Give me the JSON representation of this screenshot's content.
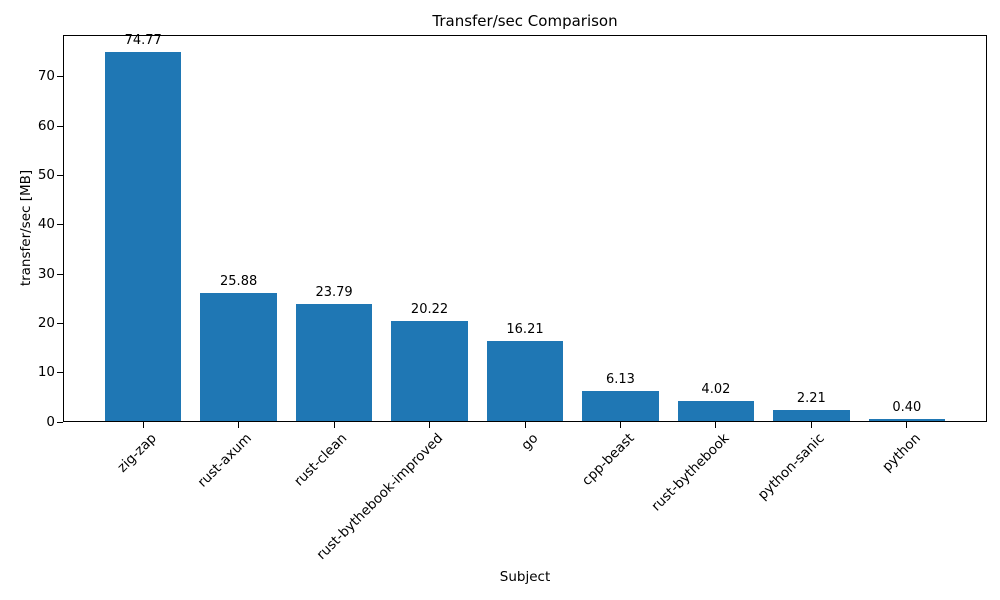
{
  "figure": {
    "background": "#ffffff",
    "text_color": "#000000",
    "spine_color": "#000000"
  },
  "chart_data": {
    "type": "bar",
    "title": "Transfer/sec Comparison",
    "xlabel": "Subject",
    "ylabel": "transfer/sec [MB]",
    "categories": [
      "zig-zap",
      "rust-axum",
      "rust-clean",
      "rust-bythebook-improved",
      "go",
      "cpp-beast",
      "rust-bythebook",
      "python-sanic",
      "python"
    ],
    "values": [
      74.77,
      25.88,
      23.79,
      20.22,
      16.21,
      6.13,
      4.02,
      2.21,
      0.4
    ],
    "bar_labels": [
      "74.77",
      "25.88",
      "23.79",
      "20.22",
      "16.21",
      "6.13",
      "4.02",
      "2.21",
      "0.40"
    ],
    "yticks": [
      0,
      10,
      20,
      30,
      40,
      50,
      60,
      70
    ],
    "ylim": [
      0,
      78.51
    ],
    "bar_color": "#1f77b4",
    "grid": false,
    "legend": "none",
    "xtick_rotation_deg": 45
  }
}
